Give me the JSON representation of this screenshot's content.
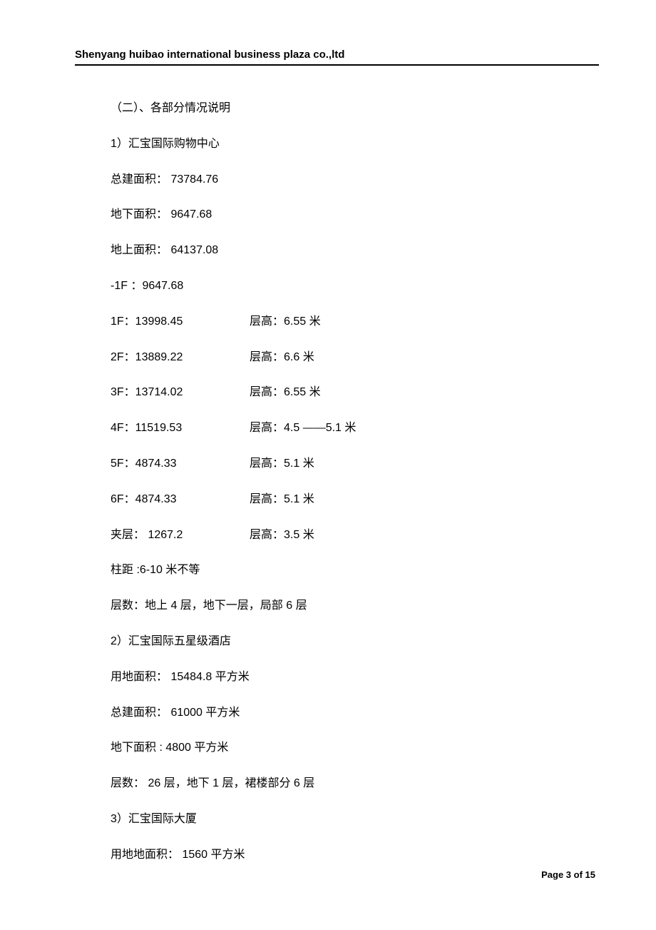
{
  "header": {
    "company": "Shenyang huibao international business plaza co.,ltd"
  },
  "content": {
    "section_title": "（二）、各部分情况说明",
    "part1": {
      "title": "1）汇宝国际购物中心",
      "total_area_label": "总建面积：",
      "total_area": "73784.76",
      "underground_label": "地下面积：",
      "underground": "9647.68",
      "aboveground_label": "地上面积：",
      "aboveground": "64137.08",
      "neg1f": "-1F ：9647.68",
      "floors": [
        {
          "left": "1F：13998.45",
          "right": "层高：6.55  米"
        },
        {
          "left": "2F：13889.22",
          "right": "层高：6.6  米"
        },
        {
          "left": "3F：13714.02",
          "right": "层高：6.55  米"
        },
        {
          "left": "4F：11519.53",
          "right": "层高：4.5 ——5.1  米"
        },
        {
          "left": "5F：4874.33",
          "right": "层高：5.1  米"
        },
        {
          "left": "6F：4874.33",
          "right": "层高：5.1  米"
        },
        {
          "left": "夹层： 1267.2",
          "right": "层高：3.5  米"
        }
      ],
      "column_spacing": "柱距 :6-10   米不等",
      "floor_count": "层数：地上  4 层，地下一层，局部    6 层"
    },
    "part2": {
      "title": "2）汇宝国际五星级酒店",
      "land_area": "用地面积： 15484.8  平方米",
      "total_area": "总建面积： 61000 平方米",
      "underground_area": "地下面积  : 4800    平方米",
      "floor_count": "层数： 26 层，地下  1 层，裙楼部分    6 层"
    },
    "part3": {
      "title": "3）汇宝国际大厦",
      "land_area": "用地地面积： 1560 平方米"
    }
  },
  "footer": {
    "page_label": "Page 3 of 15"
  }
}
